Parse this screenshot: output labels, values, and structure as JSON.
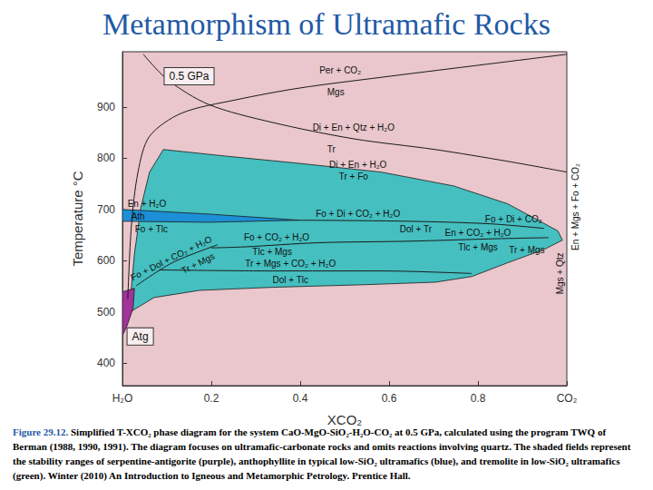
{
  "chart_data": {
    "type": "line",
    "title": "Metamorphism of Ultramafic Rocks",
    "x_label": "XCO₂",
    "y_label": "Temperature °C",
    "xlim": [
      0,
      1
    ],
    "xticks": [
      {
        "value": 0,
        "label": "H₂O"
      },
      0.2,
      0.4,
      0.6,
      0.8,
      {
        "value": 1,
        "label": "CO₂"
      }
    ],
    "ylim": [
      356,
      1008
    ],
    "yticks": [
      400,
      500,
      600,
      700,
      800,
      900
    ],
    "grid": false,
    "fields": [
      {
        "color": "#45bfc0",
        "points": [
          [
            0.092,
            817
          ],
          [
            0.235,
            804
          ],
          [
            0.398,
            790
          ],
          [
            0.582,
            773
          ],
          [
            0.745,
            746
          ],
          [
            0.867,
            711
          ],
          [
            0.98,
            658
          ],
          [
            0.99,
            640
          ],
          [
            0.949,
            622
          ],
          [
            0.867,
            596
          ],
          [
            0.786,
            569
          ],
          [
            0.704,
            558
          ],
          [
            0.541,
            553
          ],
          [
            0.337,
            548
          ],
          [
            0.173,
            542
          ],
          [
            0.071,
            528
          ],
          [
            0.014,
            498
          ],
          [
            0.018,
            525
          ],
          [
            0.027,
            613
          ],
          [
            0.041,
            702
          ],
          [
            0.061,
            773
          ]
        ]
      },
      {
        "color": "#1d8fd6",
        "points": [
          [
            0,
            700
          ],
          [
            0.194,
            691
          ],
          [
            0.398,
            679
          ],
          [
            0.194,
            675
          ],
          [
            0,
            677
          ]
        ]
      },
      {
        "color": "#a3329b",
        "points": [
          [
            0,
            539
          ],
          [
            0.027,
            546
          ],
          [
            0.024,
            507
          ],
          [
            0.01,
            472
          ],
          [
            0,
            454
          ]
        ]
      }
    ],
    "series": [
      {
        "color": "#1a1a1a",
        "values": [
          [
            0.012,
            525
          ],
          [
            0.02,
            666
          ],
          [
            0.035,
            773
          ],
          [
            0.061,
            843
          ],
          [
            0.133,
            888
          ],
          [
            0.255,
            914
          ],
          [
            0.398,
            937
          ],
          [
            0.582,
            958
          ],
          [
            0.786,
            980
          ],
          [
            1,
            1003
          ]
        ]
      },
      {
        "color": "#1a1a1a",
        "values": [
          [
            0.047,
            1003
          ],
          [
            0.102,
            953
          ],
          [
            0.194,
            905
          ],
          [
            0.337,
            870
          ],
          [
            0.52,
            838
          ],
          [
            0.704,
            817
          ],
          [
            0.867,
            794
          ],
          [
            1,
            773
          ]
        ]
      },
      {
        "color": "#1a1a1a",
        "values": [
          [
            0.398,
            679
          ],
          [
            0.643,
            677
          ],
          [
            0.827,
            672
          ],
          [
            0.949,
            663
          ]
        ]
      },
      {
        "color": "#1a1a1a",
        "values": [
          [
            0.2,
            625
          ],
          [
            0.276,
            627
          ],
          [
            0.439,
            635
          ],
          [
            0.643,
            638
          ],
          [
            0.847,
            643
          ],
          [
            0.959,
            645
          ]
        ]
      },
      {
        "color": "#1a1a1a",
        "values": [
          [
            0.082,
            582
          ],
          [
            0.337,
            580
          ],
          [
            0.582,
            580
          ],
          [
            0.786,
            575
          ]
        ]
      },
      {
        "color": "#1a1a1a",
        "values": [
          [
            0.031,
            551
          ],
          [
            0.112,
            596
          ],
          [
            0.214,
            631
          ]
        ]
      }
    ],
    "annotations": [
      {
        "text": "Per + CO₂",
        "x": 0.49,
        "y": 971
      },
      {
        "text": "Mgs",
        "x": 0.48,
        "y": 930
      },
      {
        "text": "Di + En + Qtz + H₂O",
        "x": 0.52,
        "y": 860
      },
      {
        "text": "Tr",
        "x": 0.47,
        "y": 818
      },
      {
        "text": "Di + En + H₂O",
        "x": 0.53,
        "y": 788
      },
      {
        "text": "Tr + Fo",
        "x": 0.52,
        "y": 765
      },
      {
        "text": "En + H₂O",
        "x": 0.055,
        "y": 712
      },
      {
        "text": "Ath",
        "x": 0.035,
        "y": 686
      },
      {
        "text": "Fo + Tlc",
        "x": 0.065,
        "y": 662
      },
      {
        "text": "Fo + Di + CO₂ + H₂O",
        "x": 0.53,
        "y": 691
      },
      {
        "text": "Dol + Tr",
        "x": 0.66,
        "y": 662
      },
      {
        "text": "Fo + CO₂ + H₂O",
        "x": 0.347,
        "y": 646
      },
      {
        "text": "Tlc + Mgs",
        "x": 0.337,
        "y": 618
      },
      {
        "text": "En + CO₂ + H₂O",
        "x": 0.8,
        "y": 654
      },
      {
        "text": "Tlc + Mgs",
        "x": 0.8,
        "y": 626
      },
      {
        "text": "Tr + Mgs + CO₂ + H₂O",
        "x": 0.378,
        "y": 595
      },
      {
        "text": "Dol + Tlc",
        "x": 0.378,
        "y": 562
      },
      {
        "text": "Fo + Di + CO₂",
        "x": 0.88,
        "y": 682
      },
      {
        "text": "Tr + Mgs",
        "x": 0.91,
        "y": 620
      },
      {
        "text": "Fo + Dol + CO₂ + H₂O",
        "x": 0.11,
        "y": 605
      },
      {
        "text": "Tr + Mgs",
        "x": 0.17,
        "y": 595
      },
      {
        "text": "En + Mgs + Fo + CO₂",
        "x": 1,
        "y": 705
      },
      {
        "text": "Mgs + Qtz",
        "x": 0.985,
        "y": 575
      }
    ],
    "boxed_labels": [
      {
        "text": "0.5 GPa",
        "x": 0.15,
        "y": 960
      },
      {
        "text": "Atg",
        "x": 0.04,
        "y": 452
      }
    ],
    "caption_label": "Figure 29.12.",
    "caption": "Simplified T-XCO₂ phase diagram for the system CaO-MgO-SiO₂-H₂O-CO₂ at 0.5 GPa, calculated using the program TWQ of Berman (1988, 1990, 1991). The diagram focuses on ultramafic-carbonate rocks and omits reactions involving quartz. The shaded fields represent the stability ranges of serpentine-antigorite (purple), anthophyllite in typical low-SiO₂ ultramafics (blue), and tremolite in low-SiO₂ ultramafics (green). Winter (2010) An Introduction to Igneous and Metamorphic Petrology. Prentice Hall."
  }
}
